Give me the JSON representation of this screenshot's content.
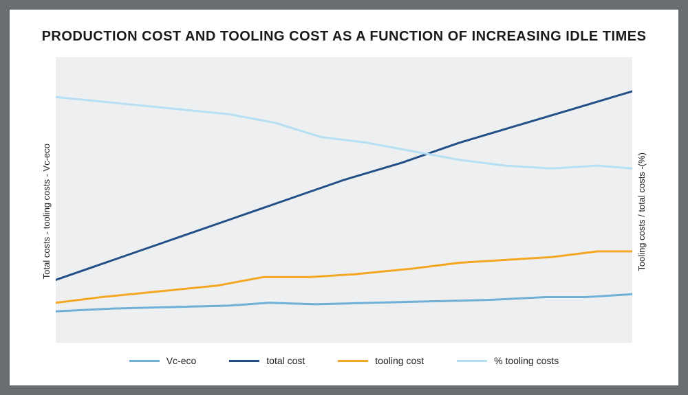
{
  "chart": {
    "type": "line",
    "title": "PRODUCTION COST AND TOOLING COST AS A FUNCTION OF INCREASING IDLE TIMES",
    "title_fontsize": 20,
    "title_color": "#1a1a1a",
    "left_axis_label": "Total costs - tooling costs - Vc-eco",
    "right_axis_label": "Tooling costs / total costs -(%)",
    "axis_label_fontsize": 13,
    "axis_label_color": "#222222",
    "background_color": "#ffffff",
    "frame_color": "#6a6e72",
    "plot_background_color": "#eeeff0",
    "xlim": [
      0,
      100
    ],
    "ylim": [
      0,
      100
    ],
    "line_width": 3,
    "series": [
      {
        "id": "vc_eco",
        "label": "Vc-eco",
        "color": "#6fb1d6",
        "points": [
          [
            0,
            11
          ],
          [
            10,
            12
          ],
          [
            20,
            12.5
          ],
          [
            30,
            13
          ],
          [
            37,
            14
          ],
          [
            45,
            13.5
          ],
          [
            55,
            14
          ],
          [
            65,
            14.5
          ],
          [
            75,
            15
          ],
          [
            85,
            16
          ],
          [
            92,
            16
          ],
          [
            100,
            17
          ]
        ]
      },
      {
        "id": "total_cost",
        "label": "total cost",
        "color": "#224f87",
        "points": [
          [
            0,
            22
          ],
          [
            10,
            29
          ],
          [
            20,
            36
          ],
          [
            30,
            43
          ],
          [
            40,
            50
          ],
          [
            50,
            57
          ],
          [
            60,
            63
          ],
          [
            70,
            70
          ],
          [
            80,
            76
          ],
          [
            90,
            82
          ],
          [
            100,
            88
          ]
        ]
      },
      {
        "id": "tooling_cost",
        "label": "tooling cost",
        "color": "#f5a623",
        "points": [
          [
            0,
            14
          ],
          [
            8,
            16
          ],
          [
            18,
            18
          ],
          [
            28,
            20
          ],
          [
            36,
            23
          ],
          [
            44,
            23
          ],
          [
            52,
            24
          ],
          [
            62,
            26
          ],
          [
            70,
            28
          ],
          [
            78,
            29
          ],
          [
            86,
            30
          ],
          [
            94,
            32
          ],
          [
            100,
            32
          ]
        ]
      },
      {
        "id": "pct_tooling",
        "label": "% tooling costs",
        "color": "#b5dff2",
        "points": [
          [
            0,
            86
          ],
          [
            10,
            84
          ],
          [
            20,
            82
          ],
          [
            30,
            80
          ],
          [
            38,
            77
          ],
          [
            46,
            72
          ],
          [
            54,
            70
          ],
          [
            62,
            67
          ],
          [
            70,
            64
          ],
          [
            78,
            62
          ],
          [
            86,
            61
          ],
          [
            94,
            62
          ],
          [
            100,
            61
          ]
        ]
      }
    ],
    "legend_fontsize": 14
  }
}
